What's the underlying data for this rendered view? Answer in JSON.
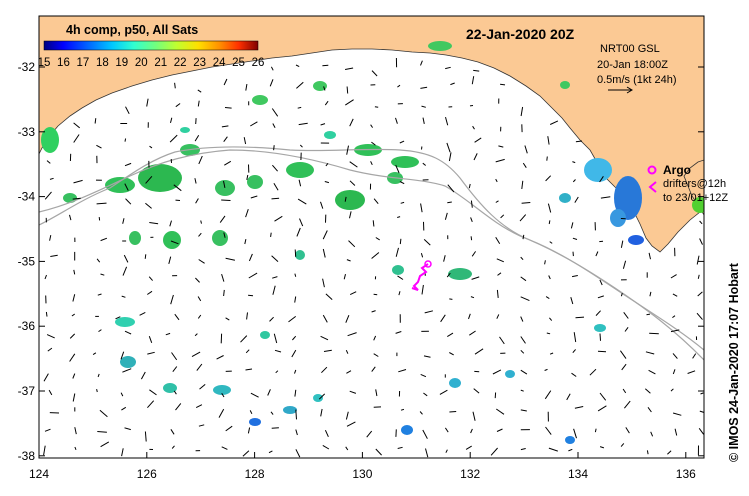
{
  "title": "22-Jan-2020 20Z",
  "product_label": "4h comp, p50, All Sats",
  "colorbar": {
    "labels": [
      "15",
      "16",
      "17",
      "18",
      "19",
      "20",
      "21",
      "22",
      "23",
      "24",
      "25",
      "26"
    ],
    "stops": [
      "#00007f",
      "#0000ff",
      "#0060ff",
      "#00c8ff",
      "#30ffd0",
      "#70ff80",
      "#c0ff30",
      "#ffe000",
      "#ff9000",
      "#ff3000",
      "#b00000",
      "#7f0000"
    ]
  },
  "info_box": {
    "line1": "NRT00 GSL",
    "line2": "20-Jan 18:00Z",
    "line3": "0.5m/s (1kt 24h)"
  },
  "argo_legend": {
    "argo_label": "Argo",
    "drifters_line1": "drifters@12h",
    "drifters_line2": "to 23/01+12Z"
  },
  "credit": "© IMOS 24-Jan-2020 17:07 Hobart",
  "x_ticks": [
    "124",
    "126",
    "128",
    "130",
    "132",
    "134",
    "136"
  ],
  "y_ticks": [
    "-32",
    "-33",
    "-34",
    "-35",
    "-36",
    "-37",
    "-38"
  ],
  "colors": {
    "land": "#fbc994",
    "isobath": "#a6a6a6",
    "argo": "#ff00ff",
    "velocity": "#000000"
  }
}
